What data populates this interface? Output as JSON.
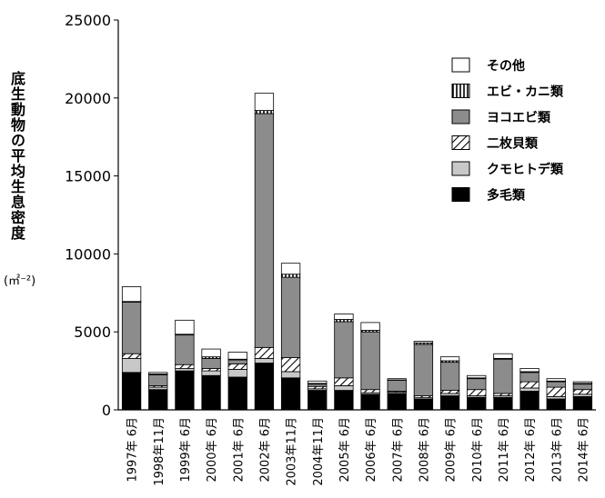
{
  "chart_data": {
    "type": "bar",
    "stacked": true,
    "title": "",
    "xlabel": "",
    "ylabel": "底生動物の平均生息密度",
    "yunit": "(㎡⁻²)",
    "ylim": [
      0,
      25000
    ],
    "yticks": [
      "0",
      "5000",
      "10000",
      "15000",
      "20000",
      "25000"
    ],
    "grid": false,
    "legend_position": "top-right",
    "categories": [
      "1997年 6月",
      "1998年11月",
      "1999年 6月",
      "2000年 6月",
      "2001年 6月",
      "2002年 6月",
      "2003年11月",
      "2004年11月",
      "2005年 6月",
      "2006年 6月",
      "2007年 6月",
      "2008年 6月",
      "2009年 6月",
      "2010年 6月",
      "2011年 6月",
      "2012年 6月",
      "2013年 6月",
      "2014年 6月"
    ],
    "series": [
      {
        "name": "多毛類",
        "color": "#000000",
        "pattern": "solid",
        "values": [
          2400,
          1300,
          2500,
          2200,
          2100,
          3000,
          2050,
          1250,
          1250,
          1000,
          1050,
          700,
          900,
          800,
          800,
          1200,
          700,
          850
        ]
      },
      {
        "name": "クモヒトデ類",
        "color": "#c8c8c8",
        "pattern": "solid",
        "values": [
          900,
          150,
          150,
          300,
          500,
          300,
          400,
          100,
          300,
          100,
          80,
          80,
          150,
          100,
          100,
          200,
          150,
          150
        ]
      },
      {
        "name": "二枚貝類",
        "color": "#ffffff",
        "pattern": "hatch",
        "values": [
          300,
          100,
          250,
          150,
          350,
          700,
          900,
          150,
          500,
          200,
          70,
          120,
          200,
          400,
          150,
          400,
          600,
          300
        ]
      },
      {
        "name": "ヨコエビ類",
        "color": "#8c8c8c",
        "pattern": "solid",
        "values": [
          3300,
          700,
          1900,
          650,
          250,
          15000,
          5150,
          150,
          3600,
          3700,
          700,
          3300,
          1800,
          700,
          2200,
          600,
          350,
          350
        ]
      },
      {
        "name": "エビ・カニ類",
        "color": "#ffffff",
        "pattern": "vstripe",
        "values": [
          50,
          50,
          50,
          100,
          50,
          200,
          200,
          50,
          150,
          100,
          20,
          100,
          100,
          50,
          50,
          50,
          50,
          50
        ]
      },
      {
        "name": "その他",
        "color": "#ffffff",
        "pattern": "solid",
        "values": [
          950,
          100,
          900,
          500,
          450,
          1100,
          700,
          150,
          350,
          500,
          80,
          100,
          250,
          150,
          300,
          200,
          150,
          100
        ]
      }
    ]
  }
}
